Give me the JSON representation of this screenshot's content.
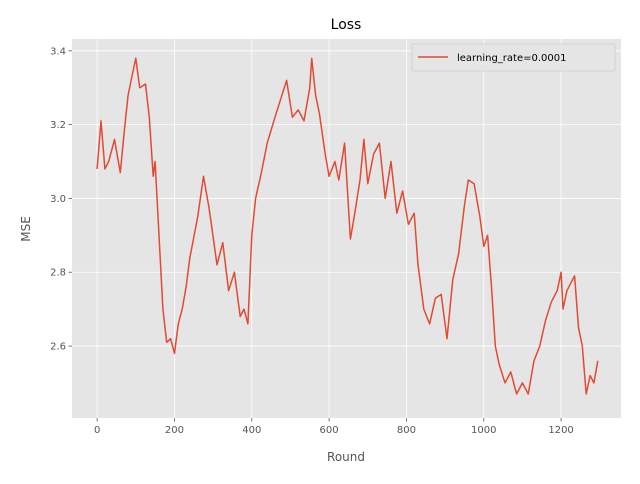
{
  "chart_data": {
    "type": "line",
    "title": "Loss",
    "xlabel": "Round",
    "ylabel": "MSE",
    "xlim": [
      -65,
      1355
    ],
    "ylim": [
      2.405,
      3.432
    ],
    "xticks": [
      0,
      200,
      400,
      600,
      800,
      1000,
      1200
    ],
    "yticks": [
      2.6,
      2.8,
      3.0,
      3.2,
      3.4
    ],
    "ytick_labels": [
      "2.6",
      "2.8",
      "3.0",
      "3.2",
      "3.4"
    ],
    "grid": true,
    "legend_position": "top-right",
    "colors": {
      "series": "#E24A33",
      "plot_bg": "#E5E5E5",
      "grid": "#FFFFFF",
      "text": "#555555"
    },
    "series": [
      {
        "name": "learning_rate=0.0001",
        "x": [
          0,
          10,
          20,
          30,
          45,
          60,
          70,
          80,
          90,
          100,
          110,
          125,
          135,
          145,
          150,
          160,
          170,
          180,
          190,
          200,
          210,
          220,
          230,
          240,
          260,
          275,
          290,
          310,
          325,
          340,
          355,
          370,
          380,
          390,
          400,
          410,
          425,
          440,
          460,
          475,
          490,
          505,
          520,
          535,
          550,
          555,
          565,
          575,
          590,
          600,
          615,
          625,
          640,
          655,
          665,
          680,
          690,
          700,
          715,
          730,
          745,
          760,
          775,
          790,
          805,
          820,
          830,
          845,
          860,
          875,
          890,
          905,
          920,
          935,
          950,
          960,
          975,
          990,
          1000,
          1010,
          1020,
          1030,
          1040,
          1055,
          1070,
          1085,
          1100,
          1115,
          1130,
          1145,
          1160,
          1175,
          1190,
          1200,
          1205,
          1215,
          1225,
          1235,
          1245,
          1255,
          1265,
          1275,
          1285,
          1295
        ],
        "y": [
          3.08,
          3.21,
          3.08,
          3.1,
          3.16,
          3.07,
          3.18,
          3.28,
          3.33,
          3.38,
          3.3,
          3.31,
          3.22,
          3.06,
          3.1,
          2.9,
          2.7,
          2.61,
          2.62,
          2.58,
          2.66,
          2.7,
          2.76,
          2.84,
          2.95,
          3.06,
          2.97,
          2.82,
          2.88,
          2.75,
          2.8,
          2.68,
          2.7,
          2.66,
          2.9,
          3.0,
          3.07,
          3.15,
          3.22,
          3.27,
          3.32,
          3.22,
          3.24,
          3.21,
          3.3,
          3.38,
          3.28,
          3.23,
          3.12,
          3.06,
          3.1,
          3.05,
          3.15,
          2.89,
          2.95,
          3.05,
          3.16,
          3.04,
          3.12,
          3.15,
          3.0,
          3.1,
          2.96,
          3.02,
          2.93,
          2.96,
          2.82,
          2.7,
          2.66,
          2.73,
          2.74,
          2.62,
          2.78,
          2.85,
          2.98,
          3.05,
          3.04,
          2.95,
          2.87,
          2.9,
          2.76,
          2.6,
          2.55,
          2.5,
          2.53,
          2.47,
          2.5,
          2.47,
          2.56,
          2.6,
          2.67,
          2.72,
          2.75,
          2.8,
          2.7,
          2.75,
          2.77,
          2.79,
          2.65,
          2.6,
          2.47,
          2.52,
          2.5,
          2.56
        ]
      }
    ]
  }
}
